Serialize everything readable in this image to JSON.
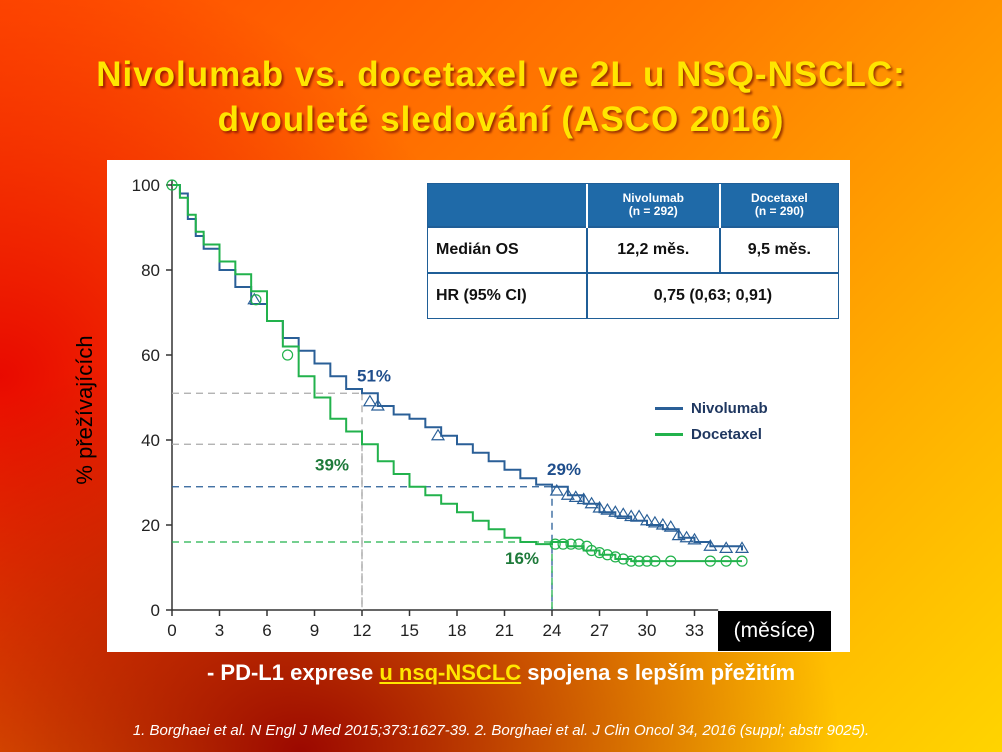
{
  "slide": {
    "title_line1": "Nivolumab vs. docetaxel ve 2L u NSQ-NSCLC:",
    "title_line2": "dvouleté sledování (ASCO 2016)",
    "bullet_prefix": "- PD-L1 exprese ",
    "bullet_highlight": "u nsq-NSCLC",
    "bullet_suffix": " spojena s lepším přežitím",
    "reference": "1. Borghaei et al. N Engl J Med 2015;373:1627-39. 2. Borghaei et al. J Clin Oncol 34, 2016 (suppl; abstr 9025)."
  },
  "table": {
    "col1_header_line1": "Nivolumab",
    "col1_header_line2": "(n = 292)",
    "col2_header_line1": "Docetaxel",
    "col2_header_line2": "(n = 290)",
    "row1_label": "Medián OS",
    "row1_nivo": "12,2 měs.",
    "row1_doce": "9,5 měs.",
    "row2_label": "HR (95% CI)",
    "row2_value": "0,75 (0,63; 0,91)"
  },
  "colors": {
    "nivolumab": "#2a5f97",
    "docetaxel": "#22b24c",
    "nivo_label": "#1f4e8c",
    "doce_label": "#1e7a3a",
    "title": "#ffe600"
  },
  "chart_data": {
    "type": "line",
    "title": "",
    "xlabel": "(měsíce)",
    "ylabel": "% přežívajících",
    "xlim": [
      0,
      36
    ],
    "ylim": [
      0,
      100
    ],
    "xticks": [
      0,
      3,
      6,
      9,
      12,
      15,
      18,
      21,
      24,
      27,
      30,
      33
    ],
    "yticks": [
      0,
      20,
      40,
      60,
      80,
      100
    ],
    "legend_position": "right",
    "series": [
      {
        "name": "Nivolumab",
        "points": [
          [
            0,
            100
          ],
          [
            0.5,
            98
          ],
          [
            1,
            92
          ],
          [
            1.5,
            88
          ],
          [
            2,
            85
          ],
          [
            3,
            80
          ],
          [
            4,
            76
          ],
          [
            5,
            72
          ],
          [
            6,
            68
          ],
          [
            7,
            64
          ],
          [
            8,
            61
          ],
          [
            9,
            58
          ],
          [
            10,
            55
          ],
          [
            11,
            52
          ],
          [
            12,
            51
          ],
          [
            13,
            48
          ],
          [
            14,
            46
          ],
          [
            15,
            45
          ],
          [
            16,
            43
          ],
          [
            17,
            41
          ],
          [
            18,
            39
          ],
          [
            19,
            37
          ],
          [
            20,
            35
          ],
          [
            21,
            33
          ],
          [
            22,
            31
          ],
          [
            23,
            29.5
          ],
          [
            24,
            29
          ],
          [
            25,
            27
          ],
          [
            26,
            25
          ],
          [
            27,
            23
          ],
          [
            28,
            22
          ],
          [
            29,
            21
          ],
          [
            30,
            20
          ],
          [
            31,
            19
          ],
          [
            32,
            17
          ],
          [
            33,
            16
          ],
          [
            34,
            15
          ],
          [
            36,
            14
          ]
        ],
        "censored": [
          [
            5.2,
            73
          ],
          [
            12.5,
            49
          ],
          [
            13,
            48
          ],
          [
            16.8,
            41
          ],
          [
            24.3,
            28
          ],
          [
            25,
            27
          ],
          [
            25.5,
            26.5
          ],
          [
            26,
            26
          ],
          [
            26.5,
            25
          ],
          [
            27,
            24
          ],
          [
            27.5,
            23.5
          ],
          [
            28,
            23
          ],
          [
            28.5,
            22.5
          ],
          [
            29,
            22
          ],
          [
            29.5,
            22
          ],
          [
            30,
            21
          ],
          [
            30.5,
            20.5
          ],
          [
            31,
            20
          ],
          [
            31.5,
            19.5
          ],
          [
            32,
            17.5
          ],
          [
            32.5,
            17
          ],
          [
            33,
            16.5
          ],
          [
            34,
            15
          ],
          [
            35,
            14.5
          ],
          [
            36,
            14.5
          ]
        ],
        "labels": [
          {
            "x": 12,
            "y": 51,
            "text": "51%"
          },
          {
            "x": 24,
            "y": 29,
            "text": "29%"
          }
        ]
      },
      {
        "name": "Docetaxel",
        "points": [
          [
            0,
            100
          ],
          [
            0.5,
            97
          ],
          [
            1,
            93
          ],
          [
            1.5,
            89
          ],
          [
            2,
            86
          ],
          [
            3,
            82
          ],
          [
            4,
            79
          ],
          [
            5,
            75
          ],
          [
            6,
            68
          ],
          [
            7,
            62
          ],
          [
            8,
            55
          ],
          [
            9,
            50
          ],
          [
            10,
            45
          ],
          [
            11,
            42
          ],
          [
            12,
            39
          ],
          [
            13,
            35
          ],
          [
            14,
            32
          ],
          [
            15,
            29
          ],
          [
            16,
            27
          ],
          [
            17,
            25
          ],
          [
            18,
            23
          ],
          [
            19,
            21
          ],
          [
            20,
            19
          ],
          [
            21,
            17
          ],
          [
            22,
            16
          ],
          [
            23,
            15.5
          ],
          [
            24,
            16
          ],
          [
            25,
            15
          ],
          [
            26,
            14
          ],
          [
            27,
            13
          ],
          [
            28,
            12
          ],
          [
            29,
            11.5
          ],
          [
            30,
            11.5
          ],
          [
            36,
            11.5
          ]
        ],
        "censored": [
          [
            0,
            100
          ],
          [
            5.3,
            73
          ],
          [
            7.3,
            60
          ],
          [
            24.2,
            15.5
          ],
          [
            24.7,
            15.5
          ],
          [
            25.2,
            15.5
          ],
          [
            25.7,
            15.5
          ],
          [
            26.2,
            15
          ],
          [
            26.5,
            14
          ],
          [
            27,
            13.5
          ],
          [
            27.5,
            13
          ],
          [
            28,
            12.5
          ],
          [
            28.5,
            12
          ],
          [
            29,
            11.5
          ],
          [
            29.5,
            11.5
          ],
          [
            30,
            11.5
          ],
          [
            30.5,
            11.5
          ],
          [
            31.5,
            11.5
          ],
          [
            34,
            11.5
          ],
          [
            35,
            11.5
          ],
          [
            36,
            11.5
          ]
        ],
        "labels": [
          {
            "x": 12,
            "y": 39,
            "text": "39%"
          },
          {
            "x": 24,
            "y": 16,
            "text": "16%"
          }
        ]
      }
    ],
    "reference_lines": [
      {
        "x": 12,
        "y": 51,
        "series": "Nivolumab"
      },
      {
        "x": 12,
        "y": 39,
        "series": "Docetaxel"
      },
      {
        "x": 24,
        "y": 29,
        "series": "Nivolumab"
      },
      {
        "x": 24,
        "y": 16,
        "series": "Docetaxel"
      }
    ]
  }
}
